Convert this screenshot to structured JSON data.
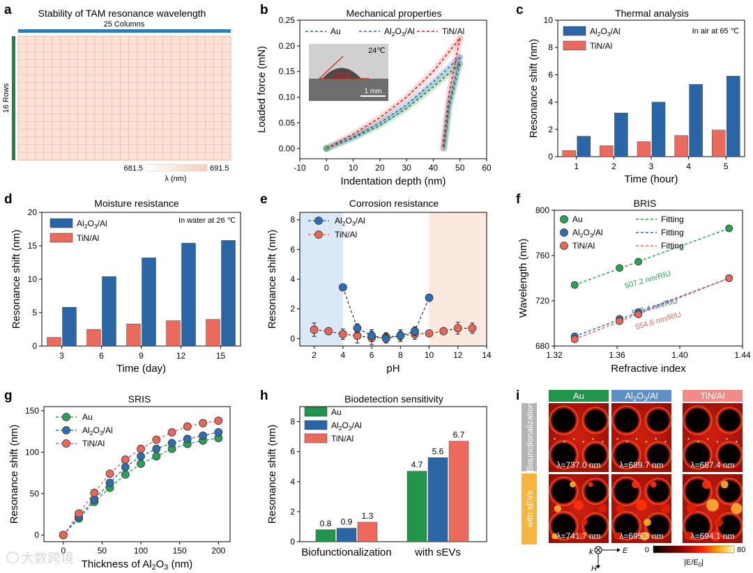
{
  "colors": {
    "au": "#2aa155",
    "al2o3": "#2e6fb0",
    "tin": "#e8665a",
    "au_bar": "#22954c",
    "al2o3_bar": "#2a66a6",
    "tin_bar": "#ec6a5c",
    "grid_fill": "#fbe2d6",
    "grid_line": "#e8ad9b",
    "columns_bar": "#2d7dbd",
    "rows_bar": "#2c7d4d",
    "acid_region": "#dbe8f6",
    "base_region": "#fbe9df"
  },
  "panels": {
    "a": {
      "letter": "a",
      "title": "Stability of TAM resonance wavelength",
      "columns_label": "25 Columns",
      "rows_label": "16 Rows",
      "colorbar_min": "681.5",
      "colorbar_max": "691.5",
      "colorbar_label": "λ (nm)"
    },
    "b": {
      "letter": "b",
      "inset_temp": "24℃",
      "inset_angle": "55.8°",
      "inset_scale": "1 mm"
    },
    "c": {
      "letter": "c",
      "annotation": "In air at 65 ℃"
    },
    "d": {
      "letter": "d",
      "annotation": "In water at 26 ℃"
    },
    "e": {
      "letter": "e"
    },
    "f": {
      "letter": "f",
      "fitting_label": "Fitting"
    },
    "g": {
      "letter": "g"
    },
    "h": {
      "letter": "h"
    },
    "i": {
      "letter": "i",
      "columns": [
        "Au",
        "Al2O3/Al",
        "TiN/Al"
      ],
      "rows": [
        "Biounctionalization",
        "with sEVs"
      ],
      "wavelengths_row1": [
        "λ=737.0 nm",
        "λ=689.7 nm",
        "λ=687.4 nm"
      ],
      "wavelengths_row2": [
        "λ=741.7 nm",
        "λ=695.3 nm",
        "λ=694.1 nm"
      ],
      "k_label": "k",
      "e_label": "E",
      "h_label": "H",
      "colorbar_min": "0",
      "colorbar_max": "80",
      "colorbar_label": "|E/E0|"
    }
  },
  "watermark": "大数跨境",
  "chart_data": [
    {
      "id": "b",
      "type": "line",
      "title": "Mechanical properties",
      "xlabel": "Indentation depth (nm)",
      "ylabel": "Loaded force (mN)",
      "xlim": [
        -10,
        60
      ],
      "ylim": [
        -0.02,
        0.25
      ],
      "xticks": [
        "-10",
        "0",
        "10",
        "20",
        "30",
        "40",
        "50",
        "60"
      ],
      "yticks": [
        "0.00",
        "0.05",
        "0.10",
        "0.15",
        "0.20",
        "0.25"
      ],
      "legend": "top",
      "series": [
        {
          "name": "Au",
          "loading": [
            [
              0,
              0
            ],
            [
              10,
              0.02
            ],
            [
              20,
              0.045
            ],
            [
              30,
              0.078
            ],
            [
              40,
              0.12
            ],
            [
              50,
              0.165
            ]
          ],
          "unloading": [
            [
              50,
              0.165
            ],
            [
              46,
              0.08
            ],
            [
              44,
              0
            ]
          ]
        },
        {
          "name": "Al2O3/Al",
          "loading": [
            [
              0,
              0
            ],
            [
              10,
              0.022
            ],
            [
              20,
              0.05
            ],
            [
              30,
              0.085
            ],
            [
              40,
              0.13
            ],
            [
              50,
              0.178
            ]
          ],
          "unloading": [
            [
              50,
              0.178
            ],
            [
              46,
              0.09
            ],
            [
              44,
              0
            ]
          ]
        },
        {
          "name": "TiN/Al",
          "loading": [
            [
              0,
              0
            ],
            [
              10,
              0.028
            ],
            [
              20,
              0.06
            ],
            [
              30,
              0.1
            ],
            [
              40,
              0.15
            ],
            [
              50,
              0.215
            ]
          ],
          "unloading": [
            [
              50,
              0.215
            ],
            [
              46,
              0.11
            ],
            [
              43.5,
              0
            ]
          ]
        }
      ]
    },
    {
      "id": "c",
      "type": "bar",
      "title": "Thermal analysis",
      "xlabel": "Time (hour)",
      "ylabel": "Resonance shift (nm)",
      "ylim": [
        0,
        10
      ],
      "yticks": [
        "0",
        "2",
        "4",
        "6",
        "8",
        "10"
      ],
      "categories": [
        "1",
        "2",
        "3",
        "4",
        "5"
      ],
      "legend": "top-left",
      "series": [
        {
          "name": "Al2O3/Al",
          "values": [
            1.5,
            3.2,
            4.0,
            5.3,
            5.9
          ]
        },
        {
          "name": "TiN/Al",
          "values": [
            0.45,
            0.8,
            1.1,
            1.55,
            1.95
          ]
        }
      ]
    },
    {
      "id": "d",
      "type": "bar",
      "title": "Moisture resistance",
      "xlabel": "Time (day)",
      "ylabel": "Resonance shift (nm)",
      "ylim": [
        0,
        20
      ],
      "yticks": [
        "0",
        "5",
        "10",
        "15",
        "20"
      ],
      "categories": [
        "3",
        "6",
        "9",
        "12",
        "15"
      ],
      "legend": "top-left",
      "series": [
        {
          "name": "Al2O3/Al",
          "values": [
            5.8,
            10.4,
            13.2,
            15.4,
            15.8
          ]
        },
        {
          "name": "TiN/Al",
          "values": [
            1.3,
            2.5,
            3.3,
            3.8,
            4.0
          ]
        }
      ]
    },
    {
      "id": "e",
      "type": "scatter",
      "title": "Corrosion resistance",
      "xlabel": "pH",
      "ylabel": "Resonance shift (nm)",
      "xlim": [
        1,
        14
      ],
      "ylim": [
        -0.5,
        8.5
      ],
      "xticks": [
        "2",
        "4",
        "6",
        "8",
        "10",
        "12",
        "14"
      ],
      "yticks": [
        "0",
        "2",
        "4",
        "6",
        "8"
      ],
      "regions": [
        [
          1,
          4
        ],
        [
          10,
          14
        ]
      ],
      "legend": "top-left",
      "series": [
        {
          "name": "Al2O3/Al",
          "x": [
            4,
            5,
            6,
            7,
            8,
            9,
            10
          ],
          "y": [
            3.45,
            0.7,
            0.2,
            0.0,
            0.2,
            0.5,
            2.75
          ],
          "err": [
            0,
            0.3,
            0.4,
            0.3,
            0.4,
            0.3,
            0
          ]
        },
        {
          "name": "TiN/Al",
          "x": [
            2,
            3,
            4,
            5,
            6,
            7,
            8,
            9,
            10,
            11,
            12,
            13
          ],
          "y": [
            0.6,
            0.5,
            0.3,
            0.2,
            0.05,
            0.1,
            0.2,
            0.3,
            0.35,
            0.5,
            0.7,
            0.7
          ],
          "err": [
            0.45,
            0.2,
            0.35,
            0.5,
            0.45,
            0.3,
            0.3,
            0.35,
            0.2,
            0.2,
            0.4,
            0.35
          ]
        }
      ]
    },
    {
      "id": "f",
      "type": "scatter",
      "title": "BRIS",
      "xlabel": "Refractive index",
      "ylabel": "Wavelength (nm)",
      "xlim": [
        1.32,
        1.44
      ],
      "ylim": [
        680,
        800
      ],
      "xticks": [
        "1.32",
        "1.36",
        "1.40",
        "1.44"
      ],
      "yticks": [
        "680",
        "720",
        "760",
        "800"
      ],
      "legend": "top-left",
      "series": [
        {
          "name": "Au",
          "x": [
            1.333,
            1.3616,
            1.3736,
            1.4314
          ],
          "y": [
            734,
            749,
            754.5,
            784
          ],
          "slope_label": "507.2 nm/RIU"
        },
        {
          "name": "Al2O3/Al",
          "x": [
            1.333,
            1.3616,
            1.3736,
            1.4314
          ],
          "y": [
            688.5,
            704,
            710,
            740
          ],
          "slope_label": "518.4 nm/RIU"
        },
        {
          "name": "TiN/Al",
          "x": [
            1.333,
            1.3616,
            1.3736,
            1.4314
          ],
          "y": [
            686,
            702,
            708,
            740
          ],
          "slope_label": "554.6 nm/RIU"
        }
      ]
    },
    {
      "id": "g",
      "type": "line",
      "title": "SRIS",
      "xlabel": "Thickness of Al2O3 (nm)",
      "ylabel": "Resonance shift (nm)",
      "xlim": [
        -25,
        215
      ],
      "ylim": [
        -8,
        155
      ],
      "xticks": [
        "0",
        "50",
        "100",
        "150",
        "200"
      ],
      "yticks": [
        "0",
        "50",
        "100",
        "150"
      ],
      "legend": "top-left",
      "x": [
        0,
        20,
        40,
        60,
        80,
        100,
        120,
        140,
        160,
        180,
        200
      ],
      "series": [
        {
          "name": "Au",
          "values": [
            0,
            20,
            40,
            57,
            73,
            86,
            95,
            104,
            110,
            114,
            117
          ]
        },
        {
          "name": "Al2O3/Al",
          "values": [
            0,
            22,
            43,
            63,
            82,
            95,
            104,
            111,
            116,
            120,
            124
          ]
        },
        {
          "name": "TiN/Al",
          "values": [
            0,
            26,
            51,
            74,
            91,
            104,
            115,
            124,
            131,
            135,
            138
          ]
        }
      ]
    },
    {
      "id": "h",
      "type": "bar",
      "title": "Biodetection sensitivity",
      "ylabel": "Resonance shift (nm)",
      "ylim": [
        0,
        9
      ],
      "yticks": [
        "0",
        "2",
        "4",
        "6",
        "8"
      ],
      "categories": [
        "Biofunctionalization",
        "with sEVs"
      ],
      "legend": "top-left",
      "series": [
        {
          "name": "Au",
          "values": [
            0.8,
            4.7
          ],
          "labels": [
            "0.8",
            "4.7"
          ]
        },
        {
          "name": "Al2O3/Al",
          "values": [
            0.9,
            5.6
          ],
          "labels": [
            "0.9",
            "5.6"
          ]
        },
        {
          "name": "TiN/Al",
          "values": [
            1.3,
            6.7
          ],
          "labels": [
            "1.3",
            "6.7"
          ]
        }
      ]
    }
  ]
}
